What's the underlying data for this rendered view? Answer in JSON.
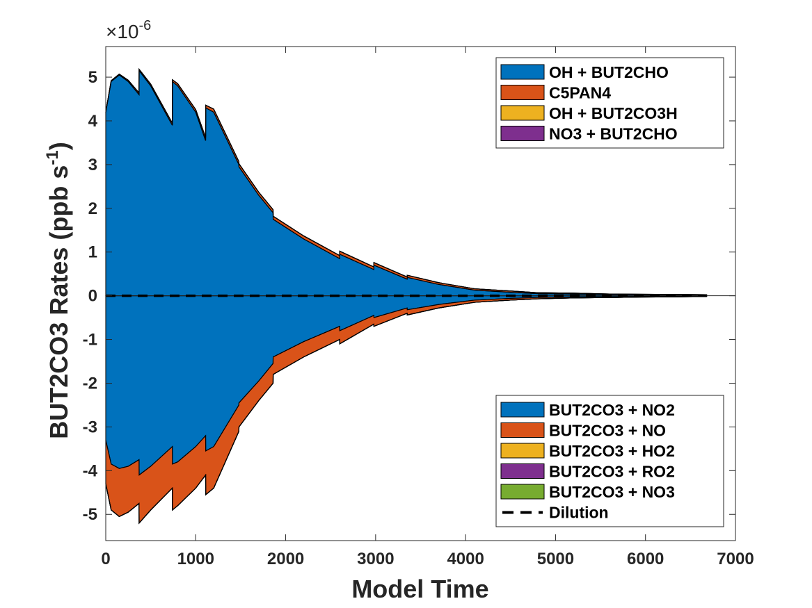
{
  "chart_data": {
    "type": "area",
    "xlabel": "Model Time",
    "ylabel": "BUT2CO3 Rates (ppb s",
    "ylabel_sup": "-1",
    "ylabel_close": ")",
    "y_multiplier_prefix": "×10",
    "y_multiplier_exp": "-6",
    "xlim": [
      0,
      7000
    ],
    "ylim": [
      -5.6,
      5.7
    ],
    "xticks": [
      "0",
      "1000",
      "2000",
      "3000",
      "4000",
      "5000",
      "6000",
      "7000"
    ],
    "xtick_values": [
      0,
      1000,
      2000,
      3000,
      4000,
      5000,
      6000,
      7000
    ],
    "yticks": [
      "-5",
      "-4",
      "-3",
      "-2",
      "-1",
      "0",
      "1",
      "2",
      "3",
      "4",
      "5"
    ],
    "ytick_values": [
      -5,
      -4,
      -3,
      -2,
      -1,
      0,
      1,
      2,
      3,
      4,
      5
    ],
    "grid": false,
    "x": [
      0,
      60,
      150,
      250,
      370,
      371,
      500,
      740,
      741,
      800,
      1000,
      1110,
      1111,
      1200,
      1480,
      1481,
      1700,
      1860,
      1861,
      2200,
      2600,
      2601,
      2980,
      2981,
      3350,
      3351,
      3700,
      4100,
      4500,
      4800,
      5200,
      5600,
      5950,
      6300,
      6680
    ],
    "production_series": [
      {
        "name": "OH + BUT2CHO",
        "color": "#0072BD",
        "values": [
          4.2,
          4.9,
          5.05,
          4.9,
          4.6,
          5.15,
          4.8,
          3.9,
          4.9,
          4.8,
          4.2,
          3.55,
          4.3,
          4.2,
          3.0,
          2.95,
          2.3,
          1.9,
          1.75,
          1.3,
          0.85,
          0.95,
          0.6,
          0.7,
          0.38,
          0.42,
          0.26,
          0.13,
          0.08,
          0.05,
          0.04,
          0.03,
          0.025,
          0.02,
          0.015
        ]
      },
      {
        "name": "C5PAN4",
        "color": "#D95319",
        "values": [
          0.0,
          0.02,
          0.02,
          0.03,
          0.04,
          0.03,
          0.04,
          0.05,
          0.04,
          0.05,
          0.06,
          0.07,
          0.06,
          0.07,
          0.07,
          0.07,
          0.07,
          0.07,
          0.07,
          0.07,
          0.07,
          0.07,
          0.06,
          0.06,
          0.05,
          0.05,
          0.04,
          0.03,
          0.03,
          0.02,
          0.02,
          0.01,
          0.01,
          0.01,
          0.01
        ]
      },
      {
        "name": "OH + BUT2CO3H",
        "color": "#EDB120",
        "values": [
          0,
          0,
          0,
          0,
          0,
          0,
          0,
          0,
          0,
          0,
          0,
          0,
          0,
          0,
          0,
          0,
          0,
          0,
          0,
          0,
          0,
          0,
          0,
          0,
          0,
          0,
          0,
          0,
          0,
          0,
          0,
          0,
          0,
          0,
          0
        ]
      },
      {
        "name": "NO3 + BUT2CHO",
        "color": "#7E2F8E",
        "values": [
          0,
          0,
          0,
          0,
          0,
          0,
          0,
          0,
          0,
          0,
          0,
          0,
          0,
          0,
          0,
          0,
          0,
          0,
          0,
          0,
          0,
          0,
          0,
          0,
          0,
          0,
          0,
          0,
          0,
          0,
          0,
          0,
          0,
          0,
          0
        ]
      }
    ],
    "loss_series": [
      {
        "name": "BUT2CO3 + NO2",
        "color": "#0072BD",
        "values": [
          -3.3,
          -3.85,
          -3.95,
          -3.9,
          -3.75,
          -4.1,
          -3.9,
          -3.45,
          -3.85,
          -3.8,
          -3.45,
          -3.2,
          -3.55,
          -3.45,
          -2.5,
          -2.45,
          -1.95,
          -1.55,
          -1.4,
          -1.05,
          -0.7,
          -0.8,
          -0.45,
          -0.5,
          -0.28,
          -0.32,
          -0.2,
          -0.1,
          -0.06,
          -0.04,
          -0.03,
          -0.025,
          -0.02,
          -0.015,
          -0.01
        ]
      },
      {
        "name": "BUT2CO3 + NO",
        "color": "#D95319",
        "values": [
          -1.0,
          -1.05,
          -1.1,
          -1.05,
          -1.0,
          -1.1,
          -1.0,
          -0.95,
          -1.05,
          -1.0,
          -0.95,
          -0.9,
          -1.0,
          -0.95,
          -0.6,
          -0.55,
          -0.45,
          -0.45,
          -0.4,
          -0.35,
          -0.3,
          -0.3,
          -0.2,
          -0.2,
          -0.12,
          -0.12,
          -0.08,
          -0.05,
          -0.04,
          -0.03,
          -0.02,
          -0.015,
          -0.01,
          -0.01,
          -0.005
        ]
      },
      {
        "name": "BUT2CO3 + HO2",
        "color": "#EDB120",
        "values": [
          0,
          0,
          0,
          0,
          0,
          0,
          0,
          0,
          0,
          0,
          0,
          0,
          0,
          0,
          0,
          0,
          0,
          0,
          0,
          0,
          0,
          0,
          0,
          0,
          0,
          0,
          0,
          0,
          0,
          0,
          0,
          0,
          0,
          0,
          0
        ]
      },
      {
        "name": "BUT2CO3 + RO2",
        "color": "#7E2F8E",
        "values": [
          0,
          0,
          0,
          0,
          0,
          0,
          0,
          0,
          0,
          0,
          0,
          0,
          0,
          0,
          0,
          0,
          0,
          0,
          0,
          0,
          0,
          0,
          0,
          0,
          0,
          0,
          0,
          0,
          0,
          0,
          0,
          0,
          0,
          0,
          0
        ]
      },
      {
        "name": "BUT2CO3 + NO3",
        "color": "#77AC30",
        "values": [
          0,
          0,
          0,
          0,
          0,
          0,
          0,
          0,
          0,
          0,
          0,
          0,
          0,
          0,
          0,
          0,
          0,
          0,
          0,
          0,
          0,
          0,
          0,
          0,
          0,
          0,
          0,
          0,
          0,
          0,
          0,
          0,
          0,
          0,
          0
        ]
      }
    ],
    "dilution": {
      "name": "Dilution",
      "color": "#000000",
      "style": "dashed",
      "x": [
        0,
        6680
      ],
      "y": [
        0,
        0
      ]
    },
    "legend_top": {
      "placement": "top-right",
      "entries": [
        "OH + BUT2CHO",
        "C5PAN4",
        "OH + BUT2CO3H",
        "NO3 + BUT2CHO"
      ]
    },
    "legend_bottom": {
      "placement": "bottom-right",
      "entries": [
        "BUT2CO3 + NO2",
        "BUT2CO3 + NO",
        "BUT2CO3 + HO2",
        "BUT2CO3 + RO2",
        "BUT2CO3 + NO3",
        "Dilution"
      ]
    }
  }
}
